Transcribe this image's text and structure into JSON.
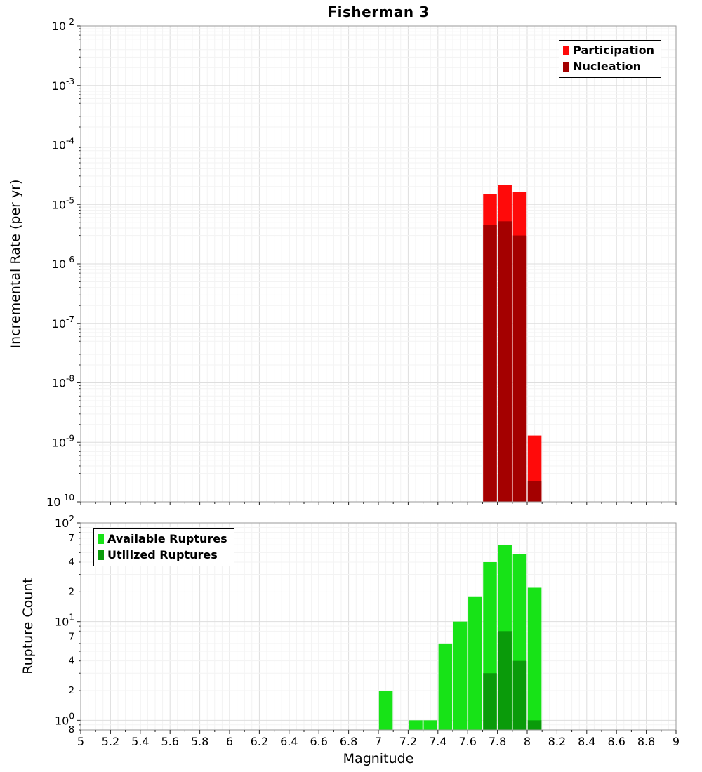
{
  "title": "Fisherman 3",
  "chart_data": [
    {
      "type": "bar",
      "name": "incremental-rate",
      "title": "Fisherman 3",
      "ylabel": "Incremental Rate (per yr)",
      "yscale": "log",
      "xlim": [
        5,
        9
      ],
      "ylim": [
        1e-10,
        0.01
      ],
      "bin_width": 0.1,
      "grid": true,
      "show_x_tick_labels": false,
      "legend_position": "top-right",
      "x_ticks": [
        "5",
        "5.2",
        "5.4",
        "5.6",
        "5.8",
        "6",
        "6.2",
        "6.4",
        "6.6",
        "6.8",
        "7",
        "7.2",
        "7.4",
        "7.6",
        "7.8",
        "8",
        "8.2",
        "8.4",
        "8.6",
        "8.8",
        "9"
      ],
      "y_ticks": [
        {
          "v": 0.01,
          "l": "10^-2"
        },
        {
          "v": 0.001,
          "l": "10^-3"
        },
        {
          "v": 0.0001,
          "l": "10^-4"
        },
        {
          "v": 1e-05,
          "l": "10^-5"
        },
        {
          "v": 1e-06,
          "l": "10^-6"
        },
        {
          "v": 1e-07,
          "l": "10^-7"
        },
        {
          "v": 1e-08,
          "l": "10^-8"
        },
        {
          "v": 1e-09,
          "l": "10^-9"
        },
        {
          "v": 1e-10,
          "l": "10^-10"
        }
      ],
      "series": [
        {
          "name": "Participation",
          "color": "#ff0a0a",
          "x": [
            7.75,
            7.85,
            7.95,
            8.05
          ],
          "values": [
            1.5e-05,
            2.1e-05,
            1.6e-05,
            1.3e-09
          ]
        },
        {
          "name": "Nucleation",
          "color": "#a40000",
          "x": [
            7.75,
            7.85,
            7.95,
            8.05
          ],
          "values": [
            4.5e-06,
            5.2e-06,
            3e-06,
            2.2e-10
          ]
        }
      ]
    },
    {
      "type": "bar",
      "name": "rupture-count",
      "ylabel": "Rupture Count",
      "xlabel": "Magnitude",
      "yscale": "log",
      "xlim": [
        5,
        9
      ],
      "ylim": [
        0.8,
        100
      ],
      "bin_width": 0.1,
      "grid": true,
      "show_x_tick_labels": true,
      "legend_position": "top-left",
      "x_ticks": [
        "5",
        "5.2",
        "5.4",
        "5.6",
        "5.8",
        "6",
        "6.2",
        "6.4",
        "6.6",
        "6.8",
        "7",
        "7.2",
        "7.4",
        "7.6",
        "7.8",
        "8",
        "8.2",
        "8.4",
        "8.6",
        "8.8",
        "9"
      ],
      "y_ticks": [
        {
          "v": 100,
          "l": "10^2"
        },
        {
          "v": 70,
          "l": "7"
        },
        {
          "v": 40,
          "l": "4"
        },
        {
          "v": 20,
          "l": "2"
        },
        {
          "v": 10,
          "l": "10^1"
        },
        {
          "v": 7,
          "l": "7"
        },
        {
          "v": 4,
          "l": "4"
        },
        {
          "v": 2,
          "l": "2"
        },
        {
          "v": 1,
          "l": "10^0"
        },
        {
          "v": 0.8,
          "l": "8"
        }
      ],
      "series": [
        {
          "name": "Available Ruptures",
          "color": "#17e317",
          "x": [
            7.05,
            7.25,
            7.35,
            7.45,
            7.55,
            7.65,
            7.75,
            7.85,
            7.95,
            8.05
          ],
          "values": [
            2,
            1,
            1,
            6,
            10,
            18,
            40,
            60,
            48,
            22
          ]
        },
        {
          "name": "Utilized Ruptures",
          "color": "#0a9b0a",
          "x": [
            7.75,
            7.85,
            7.95,
            8.05
          ],
          "values": [
            3,
            8,
            4,
            1
          ]
        }
      ]
    }
  ]
}
